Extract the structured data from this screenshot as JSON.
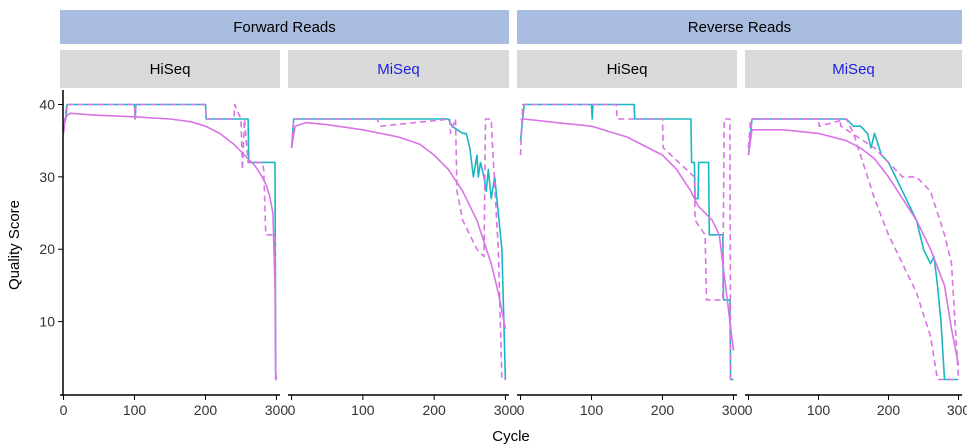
{
  "colors": {
    "outer_strip": "#a9bde0",
    "inner_strip": "#d9d9d9",
    "hiseq_label": "#000000",
    "miseq_label": "#1f1fe0",
    "teal": "#1bb7c1",
    "magenta": "#d974e6",
    "axis": "#000000"
  },
  "chart_data": {
    "type": "line",
    "xlabel": "Cycle",
    "ylabel": "Quality Score",
    "xlim": [
      -5,
      305
    ],
    "ylim": [
      0,
      42
    ],
    "x_ticks": [
      0,
      100,
      200,
      300
    ],
    "y_ticks": [
      10,
      20,
      30,
      40
    ],
    "grid": false,
    "legend": "none",
    "outer_strips": [
      {
        "label": "Forward Reads"
      },
      {
        "label": "Reverse Reads"
      }
    ],
    "panels": [
      {
        "read": "Forward Reads",
        "label": "HiSeq",
        "series": [
          {
            "style": "teal-solid",
            "x": [
              0,
              3,
              5,
              100,
              101,
              102,
              200,
              201,
              260,
              261,
              298,
              299,
              300
            ],
            "y": [
              37,
              38,
              40,
              40,
              38,
              40,
              40,
              38,
              38,
              32,
              32,
              2,
              2
            ]
          },
          {
            "style": "magenta-solid",
            "x": [
              0,
              2,
              5,
              10,
              20,
              50,
              100,
              150,
              180,
              200,
              220,
              240,
              250,
              260,
              270,
              280,
              285,
              290,
              295,
              298,
              299,
              300
            ],
            "y": [
              36,
              38,
              38.5,
              38.8,
              38.7,
              38.5,
              38.3,
              38,
              37.6,
              37,
              36,
              34.5,
              33.5,
              32.5,
              31.5,
              30,
              29,
              27.5,
              25,
              15,
              3,
              2
            ]
          },
          {
            "style": "magenta-dashed",
            "x": [
              0,
              3,
              5,
              100,
              101,
              102,
              200,
              201,
              240,
              241,
              250,
              252,
              255,
              260,
              280,
              282,
              285,
              298,
              299,
              300
            ],
            "y": [
              36,
              39,
              40,
              40,
              38,
              40,
              40,
              38,
              38,
              40,
              38,
              31,
              38,
              32,
              32,
              31,
              22,
              22,
              2,
              2
            ]
          }
        ]
      },
      {
        "read": "Forward Reads",
        "label": "MiSeq",
        "series": [
          {
            "style": "teal-solid",
            "x": [
              0,
              3,
              5,
              220,
              225,
              240,
              245,
              250,
              255,
              260,
              262,
              265,
              270,
              273,
              276,
              280,
              285,
              290,
              295,
              300
            ],
            "y": [
              34,
              38,
              38,
              38,
              37,
              36,
              36,
              34,
              30,
              33,
              30,
              32,
              30,
              28,
              31,
              27,
              30,
              25,
              20,
              2
            ]
          },
          {
            "style": "magenta-solid",
            "x": [
              0,
              5,
              20,
              50,
              100,
              150,
              180,
              200,
              220,
              240,
              260,
              280,
              290,
              300
            ],
            "y": [
              34,
              37,
              37.5,
              37.2,
              36.5,
              35.5,
              34.5,
              33,
              31,
              28,
              24,
              18,
              14,
              9
            ]
          },
          {
            "style": "magenta-dashed",
            "x": [
              0,
              3,
              5,
              120,
              125,
              222,
              223,
              230,
              232,
              240,
              250,
              260,
              270,
              272,
              280,
              282,
              290,
              295,
              300
            ],
            "y": [
              34,
              38,
              38,
              38,
              37,
              38,
              36,
              38,
              28,
              24,
              22,
              20,
              19,
              38,
              38,
              34,
              20,
              2,
              2
            ]
          }
        ]
      },
      {
        "read": "Reverse Reads",
        "label": "HiSeq",
        "series": [
          {
            "style": "teal-solid",
            "x": [
              0,
              3,
              5,
              100,
              101,
              102,
              160,
              161,
              240,
              241,
              245,
              246,
              250,
              251,
              265,
              266,
              285,
              286,
              295,
              296,
              300
            ],
            "y": [
              35,
              38,
              40,
              40,
              38,
              40,
              40,
              38,
              38,
              32,
              32,
              27,
              27,
              32,
              32,
              22,
              22,
              13,
              13,
              2,
              2
            ]
          },
          {
            "style": "magenta-solid",
            "x": [
              0,
              5,
              50,
              100,
              150,
              200,
              220,
              240,
              250,
              260,
              270,
              280,
              285,
              290,
              295,
              300
            ],
            "y": [
              38,
              38,
              37.5,
              37,
              35.5,
              33,
              31,
              28,
              26,
              25,
              24,
              22,
              18,
              14,
              10,
              6
            ]
          },
          {
            "style": "magenta-dashed",
            "x": [
              0,
              3,
              5,
              135,
              136,
              200,
              201,
              245,
              246,
              260,
              262,
              285,
              287,
              295,
              296,
              300
            ],
            "y": [
              33,
              40,
              40,
              40,
              38,
              38,
              34,
              30,
              24,
              22,
              13,
              13,
              38,
              38,
              2,
              2
            ]
          }
        ]
      },
      {
        "read": "Reverse Reads",
        "label": "MiSeq",
        "series": [
          {
            "style": "teal-solid",
            "x": [
              0,
              5,
              140,
              150,
              160,
              170,
              175,
              180,
              190,
              200,
              210,
              220,
              230,
              240,
              250,
              255,
              260,
              265,
              270,
              275,
              280,
              300
            ],
            "y": [
              33,
              38,
              38,
              37,
              37,
              36,
              34,
              36,
              33,
              32,
              30,
              28,
              26,
              24,
              20,
              19,
              18,
              19,
              15,
              10,
              2,
              2
            ]
          },
          {
            "style": "magenta-solid",
            "x": [
              0,
              5,
              50,
              100,
              140,
              160,
              180,
              200,
              220,
              240,
              260,
              280,
              290,
              300
            ],
            "y": [
              33,
              36.5,
              36.5,
              36,
              35,
              34,
              32.5,
              30,
              27,
              24,
              20,
              15,
              9,
              4
            ]
          },
          {
            "style": "magenta-dashed",
            "x": [
              0,
              3,
              5,
              100,
              101,
              140,
              150,
              160,
              180,
              200,
              220,
              240,
              260,
              270,
              275,
              280,
              300
            ],
            "y": [
              34,
              38,
              38,
              38,
              37,
              38,
              36,
              33,
              27,
              22,
              18,
              14,
              8,
              2,
              2,
              2,
              2
            ]
          },
          {
            "style": "magenta-dashed",
            "x": [
              0,
              5,
              130,
              132,
              180,
              200,
              220,
              240,
              260,
              280,
              290,
              300
            ],
            "y": [
              34,
              38,
              38,
              37,
              34,
              32,
              30,
              30,
              28,
              22,
              18,
              2
            ]
          }
        ]
      }
    ]
  }
}
